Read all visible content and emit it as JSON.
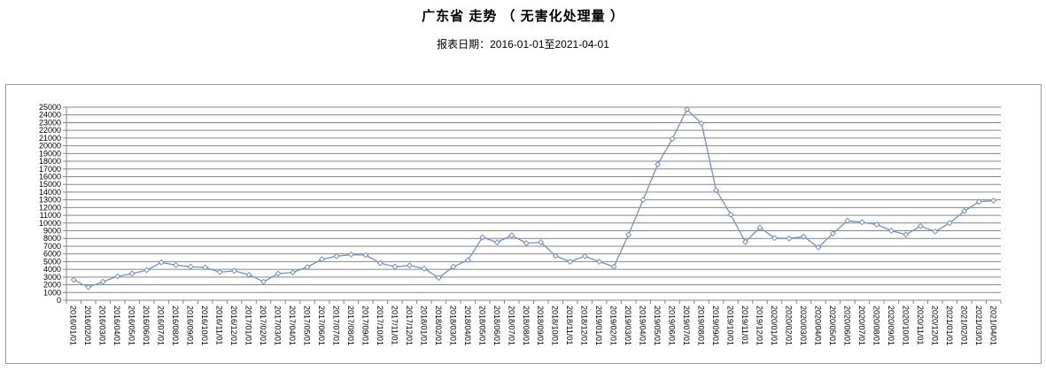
{
  "header": {
    "title": "广东省 走势 （ 无害化处理量 ）",
    "subtitle": "报表日期：2016-01-01至2021-04-01"
  },
  "colors": {
    "series_line": "#7591C2",
    "marker_fill": "#FFFFFF",
    "gridline": "#848484",
    "axis": "#848484",
    "border": "#9A9A9A",
    "text": "#000000"
  },
  "chart_data": {
    "type": "line",
    "title": "广东省 走势 （ 无害化处理量 ）",
    "subtitle": "报表日期：2016-01-01至2021-04-01",
    "xlabel": "",
    "ylabel": "",
    "legend": "none",
    "grid": "horizontal",
    "marker_style": "diamond-outline",
    "ylim": [
      0,
      25000
    ],
    "y_step": 1000,
    "y_ticks": [
      0,
      1000,
      2000,
      3000,
      4000,
      5000,
      6000,
      7000,
      8000,
      9000,
      10000,
      11000,
      12000,
      13000,
      14000,
      15000,
      16000,
      17000,
      18000,
      19000,
      20000,
      21000,
      22000,
      23000,
      24000,
      25000
    ],
    "categories": [
      "2016/01/01",
      "2016/02/01",
      "2016/03/01",
      "2016/04/01",
      "2016/05/01",
      "2016/06/01",
      "2016/07/01",
      "2016/08/01",
      "2016/09/01",
      "2016/10/01",
      "2016/11/01",
      "2016/12/01",
      "2017/01/01",
      "2017/02/01",
      "2017/03/01",
      "2017/04/01",
      "2017/05/01",
      "2017/06/01",
      "2017/07/01",
      "2017/08/01",
      "2017/09/01",
      "2017/10/01",
      "2017/11/01",
      "2017/12/01",
      "2018/01/01",
      "2018/02/01",
      "2018/03/01",
      "2018/04/01",
      "2018/05/01",
      "2018/06/01",
      "2018/07/01",
      "2018/08/01",
      "2018/09/01",
      "2018/10/01",
      "2018/11/01",
      "2018/12/01",
      "2019/01/01",
      "2019/02/01",
      "2019/03/01",
      "2019/04/01",
      "2019/05/01",
      "2019/06/01",
      "2019/07/01",
      "2019/08/01",
      "2019/09/01",
      "2019/10/01",
      "2019/11/01",
      "2019/12/01",
      "2020/01/01",
      "2020/02/01",
      "2020/03/01",
      "2020/04/01",
      "2020/05/01",
      "2020/06/01",
      "2020/07/01",
      "2020/08/01",
      "2020/09/01",
      "2020/10/01",
      "2020/11/01",
      "2020/12/01",
      "2021/01/01",
      "2021/02/01",
      "2021/03/01",
      "2021/04/01"
    ],
    "values": [
      2650,
      1700,
      2400,
      3100,
      3450,
      3900,
      4900,
      4550,
      4350,
      4250,
      3650,
      3800,
      3300,
      2400,
      3450,
      3600,
      4300,
      5300,
      5700,
      5900,
      5850,
      4800,
      4350,
      4500,
      4100,
      2900,
      4350,
      5200,
      8150,
      7500,
      8400,
      7400,
      7500,
      5750,
      5000,
      5700,
      5000,
      4350,
      8500,
      13000,
      17600,
      20900,
      24700,
      22900,
      14250,
      11100,
      7550,
      9400,
      8050,
      8000,
      8250,
      6850,
      8650,
      10300,
      10100,
      9800,
      9000,
      8500,
      9600,
      8900,
      10000,
      11550,
      12750,
      12900
    ]
  }
}
